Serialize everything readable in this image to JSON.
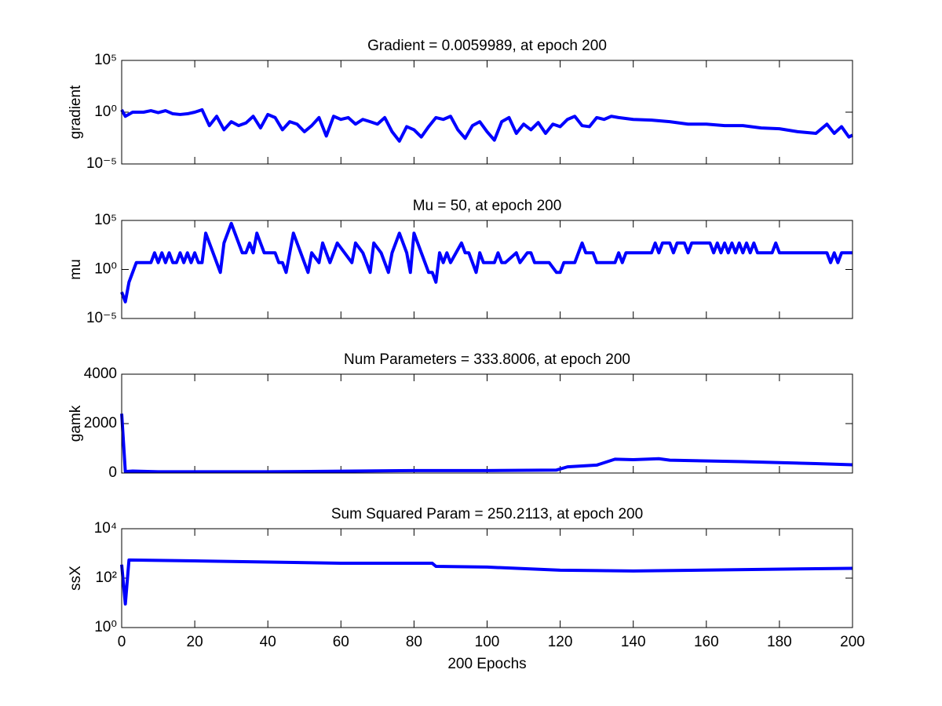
{
  "chart_data": [
    {
      "type": "line",
      "title": "Gradient = 0.0059989, at epoch 200",
      "ylabel": "gradient",
      "color": "#0000ff",
      "log_y": true,
      "xlim": [
        0,
        200
      ],
      "xticks": [
        0,
        20,
        40,
        60,
        80,
        100,
        120,
        140,
        160,
        180,
        200
      ],
      "show_xtick_labels": false,
      "ylim": [
        1e-05,
        100000
      ],
      "yticks": [
        {
          "value": 1e-05,
          "label": "10⁻⁵"
        },
        {
          "value": 1,
          "label": "10⁰"
        },
        {
          "value": 100000,
          "label": "10⁵"
        }
      ],
      "x": [
        0,
        1,
        3,
        6,
        8,
        10,
        12,
        14,
        16,
        18,
        20,
        22,
        24,
        26,
        28,
        30,
        32,
        34,
        36,
        38,
        40,
        42,
        44,
        46,
        48,
        50,
        52,
        54,
        56,
        58,
        60,
        62,
        64,
        66,
        68,
        70,
        72,
        74,
        76,
        78,
        80,
        82,
        84,
        86,
        88,
        90,
        92,
        94,
        96,
        98,
        100,
        102,
        104,
        106,
        108,
        110,
        112,
        114,
        116,
        118,
        120,
        122,
        124,
        126,
        128,
        130,
        132,
        134,
        136,
        140,
        145,
        150,
        155,
        160,
        165,
        170,
        175,
        180,
        185,
        190,
        193,
        195,
        197,
        199,
        200
      ],
      "values": [
        1.7,
        0.4,
        1,
        1,
        1.4,
        0.9,
        1.4,
        0.7,
        0.6,
        0.7,
        1,
        1.7,
        0.05,
        0.4,
        0.02,
        0.12,
        0.05,
        0.09,
        0.4,
        0.03,
        0.6,
        0.3,
        0.02,
        0.12,
        0.07,
        0.013,
        0.05,
        0.3,
        0.005,
        0.4,
        0.2,
        0.3,
        0.07,
        0.2,
        0.12,
        0.07,
        0.3,
        0.013,
        0.0016,
        0.04,
        0.02,
        0.004,
        0.04,
        0.3,
        0.2,
        0.4,
        0.02,
        0.003,
        0.05,
        0.12,
        0.013,
        0.002,
        0.12,
        0.3,
        0.009,
        0.07,
        0.02,
        0.1,
        0.009,
        0.07,
        0.04,
        0.2,
        0.4,
        0.05,
        0.04,
        0.3,
        0.2,
        0.4,
        0.3,
        0.2,
        0.17,
        0.12,
        0.07,
        0.07,
        0.05,
        0.05,
        0.03,
        0.025,
        0.013,
        0.009,
        0.07,
        0.009,
        0.04,
        0.004,
        0.006
      ]
    },
    {
      "type": "line",
      "title": "Mu = 50, at epoch 200",
      "ylabel": "mu",
      "color": "#0000ff",
      "log_y": true,
      "xlim": [
        0,
        200
      ],
      "xticks": [
        0,
        20,
        40,
        60,
        80,
        100,
        120,
        140,
        160,
        180,
        200
      ],
      "show_xtick_labels": false,
      "ylim": [
        1e-05,
        100000
      ],
      "yticks": [
        {
          "value": 1e-05,
          "label": "10⁻⁵"
        },
        {
          "value": 1,
          "label": "10⁰"
        },
        {
          "value": 100000,
          "label": "10⁵"
        }
      ],
      "x": [
        0,
        1,
        2,
        3,
        4,
        8,
        9,
        10,
        11,
        12,
        13,
        14,
        15,
        16,
        17,
        18,
        19,
        20,
        21,
        22,
        23,
        25,
        27,
        28,
        30,
        31,
        33,
        34,
        35,
        36,
        37,
        38,
        39,
        42,
        43,
        44,
        45,
        46,
        47,
        49,
        51,
        52,
        54,
        55,
        57,
        58,
        59,
        61,
        63,
        64,
        66,
        68,
        69,
        71,
        72,
        73,
        74,
        76,
        78,
        79,
        80,
        82,
        83,
        84,
        85,
        86,
        87,
        88,
        89,
        90,
        93,
        94,
        95,
        97,
        98,
        99,
        102,
        103,
        104,
        105,
        108,
        109,
        111,
        112,
        113,
        117,
        119,
        120,
        121,
        124,
        125,
        126,
        127,
        129,
        130,
        135,
        136,
        137,
        138,
        145,
        146,
        147,
        148,
        150,
        151,
        152,
        154,
        155,
        156,
        161,
        162,
        163,
        164,
        165,
        166,
        167,
        168,
        169,
        170,
        171,
        172,
        173,
        174,
        178,
        179,
        180,
        193,
        194,
        195,
        196,
        197,
        200
      ],
      "values": [
        0.005,
        0.0005,
        0.05,
        0.5,
        5,
        5,
        50,
        5,
        50,
        5,
        50,
        5,
        5,
        50,
        5,
        50,
        5,
        50,
        5,
        5,
        5000,
        50,
        0.5,
        500,
        50000,
        5000,
        50,
        50,
        500,
        50,
        5000,
        500,
        50,
        50,
        5,
        5,
        0.5,
        50,
        5000,
        50,
        0.5,
        50,
        5,
        500,
        5,
        50,
        500,
        50,
        5,
        500,
        50,
        0.5,
        500,
        50,
        5,
        0.5,
        50,
        5000,
        50,
        0.5,
        5000,
        50,
        5,
        0.5,
        0.5,
        0.05,
        50,
        5,
        50,
        5,
        500,
        50,
        50,
        0.5,
        50,
        5,
        5,
        50,
        5,
        5,
        50,
        5,
        50,
        50,
        5,
        5,
        0.5,
        0.5,
        5,
        5,
        50,
        500,
        50,
        50,
        5,
        5,
        50,
        5,
        50,
        50,
        500,
        50,
        500,
        500,
        50,
        500,
        500,
        50,
        500,
        500,
        50,
        500,
        50,
        500,
        50,
        500,
        50,
        500,
        50,
        500,
        50,
        500,
        50,
        50,
        500,
        50,
        50,
        5,
        50,
        5,
        50,
        50
      ]
    },
    {
      "type": "line",
      "title": "Num Parameters = 333.8006, at epoch 200",
      "ylabel": "gamk",
      "color": "#0000ff",
      "log_y": false,
      "xlim": [
        0,
        200
      ],
      "xticks": [
        0,
        20,
        40,
        60,
        80,
        100,
        120,
        140,
        160,
        180,
        200
      ],
      "show_xtick_labels": false,
      "ylim": [
        0,
        4000
      ],
      "yticks": [
        0,
        2000,
        4000
      ],
      "x": [
        0,
        1,
        3,
        10,
        40,
        80,
        100,
        119,
        122,
        130,
        135,
        140,
        147,
        150,
        170,
        190,
        200
      ],
      "values": [
        2400,
        60,
        80,
        50,
        50,
        100,
        100,
        120,
        250,
        320,
        560,
        540,
        580,
        520,
        460,
        380,
        334
      ]
    },
    {
      "type": "line",
      "title": "Sum Squared Param = 250.2113, at epoch 200",
      "ylabel": "ssX",
      "xlabel": "200 Epochs",
      "color": "#0000ff",
      "log_y": true,
      "xlim": [
        0,
        200
      ],
      "xticks": [
        0,
        20,
        40,
        60,
        80,
        100,
        120,
        140,
        160,
        180,
        200
      ],
      "show_xtick_labels": true,
      "ylim": [
        1,
        10000
      ],
      "yticks": [
        {
          "value": 1,
          "label": "10⁰"
        },
        {
          "value": 100,
          "label": "10²"
        },
        {
          "value": 10000,
          "label": "10⁴"
        }
      ],
      "x": [
        0,
        1,
        2,
        20,
        60,
        85,
        86,
        100,
        120,
        140,
        200
      ],
      "values": [
        350,
        9,
        540,
        500,
        400,
        400,
        300,
        280,
        210,
        195,
        250
      ]
    }
  ]
}
